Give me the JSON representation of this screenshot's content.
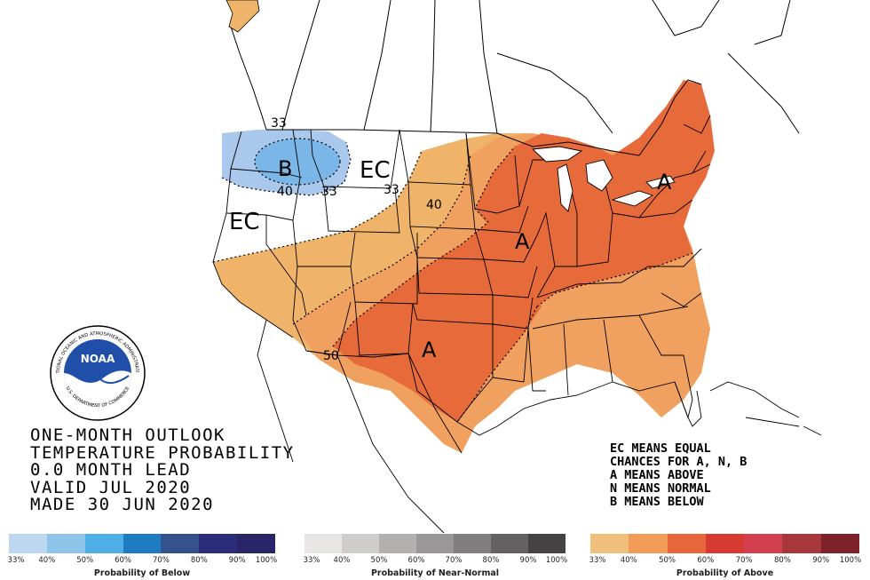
{
  "map": {
    "region_labels": {
      "ec_north": "EC",
      "ec_west": "EC",
      "below_center": "B",
      "above_south": "A",
      "above_midwest": "A",
      "above_northeast": "A"
    },
    "contour_labels": {
      "below_33_west": "33",
      "below_40": "40",
      "below_33_east": "33",
      "above_33": "33",
      "above_40": "40",
      "above_50": "50"
    },
    "colors": {
      "below_33": "#a9c8ec",
      "below_40": "#7ab6e7",
      "above_33": "#efb46a",
      "above_40": "#f0a160",
      "above_50": "#e66a3a",
      "ocean": "#ffffff",
      "lines": "#000000"
    }
  },
  "title": {
    "line1": "ONE-MONTH OUTLOOK",
    "line2": "TEMPERATURE PROBABILITY",
    "line3": "0.0 MONTH LEAD",
    "line4": "VALID JUL 2020",
    "line5": "MADE 30 JUN 2020"
  },
  "notes": {
    "line1": "EC MEANS EQUAL",
    "line2": "CHANCES FOR A, N, B",
    "line3": "A MEANS ABOVE",
    "line4": "N MEANS NORMAL",
    "line5": "B MEANS BELOW"
  },
  "logo": {
    "text": "NOAA",
    "ring_top": "NATIONAL OCEANIC AND ATMOSPHERIC ADMINISTRATION",
    "ring_bottom": "U.S. DEPARTMENT OF COMMERCE"
  },
  "legend": {
    "below": {
      "caption": "Probability of Below",
      "colors": [
        "#bcd7ef",
        "#8ec3ea",
        "#4faee6",
        "#1f7cc2",
        "#35528c",
        "#2b2d7a",
        "#2a2469"
      ],
      "ticks": [
        "33%",
        "40%",
        "50%",
        "60%",
        "70%",
        "80%",
        "90%",
        "100%"
      ]
    },
    "normal": {
      "caption": "Probability of Near-Normal",
      "colors": [
        "#e9e6e6",
        "#cfcccc",
        "#b3b0b0",
        "#999797",
        "#807e7e",
        "#636161",
        "#444242"
      ],
      "ticks": [
        "33%",
        "40%",
        "50%",
        "60%",
        "70%",
        "80%",
        "90%",
        "100%"
      ]
    },
    "above": {
      "caption": "Probability of Above",
      "colors": [
        "#efbf7b",
        "#f39c5a",
        "#e8673a",
        "#d63a30",
        "#d33f4e",
        "#a8373c",
        "#7e2128"
      ],
      "ticks": [
        "33%",
        "40%",
        "50%",
        "60%",
        "70%",
        "80%",
        "90%",
        "100%"
      ]
    }
  }
}
